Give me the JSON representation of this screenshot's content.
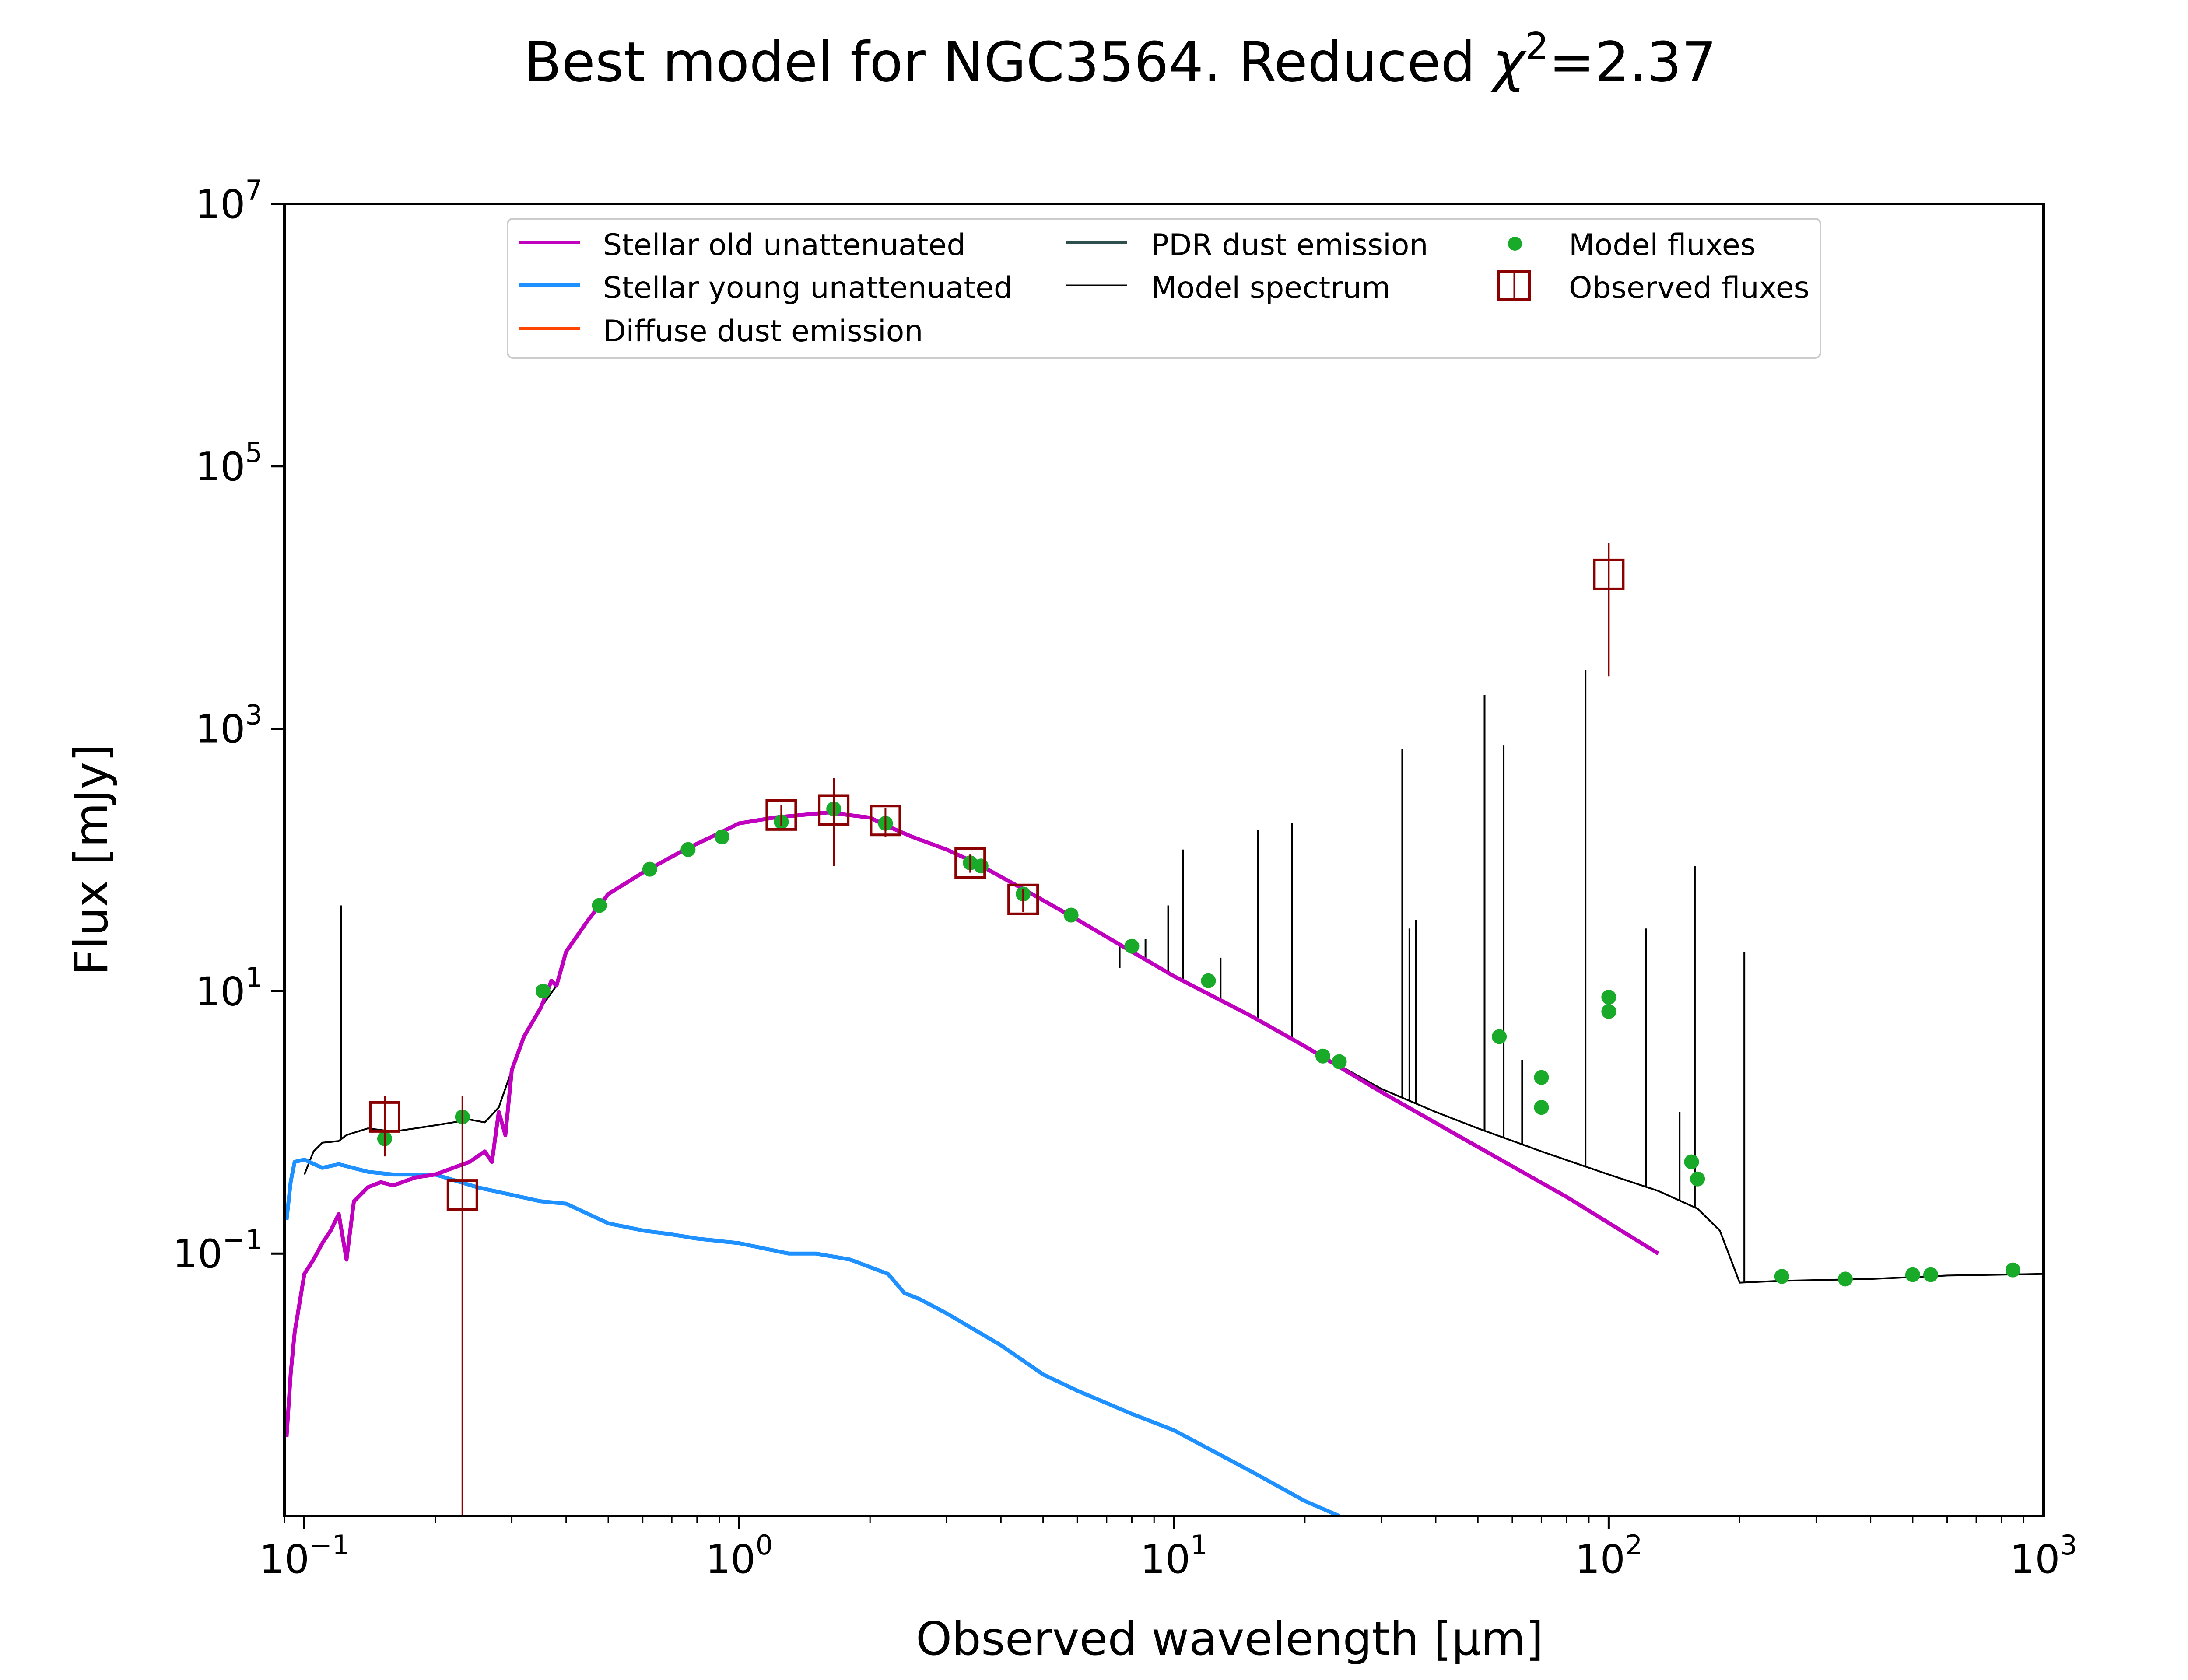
{
  "chart_data": {
    "type": "line",
    "title": "Best model for NGC3564. Reduced χ²=2.37",
    "title_parts": {
      "prefix": "Best model for NGC3564. Reduced ",
      "symbol": "χ",
      "superscript": "2",
      "suffix": "=2.37"
    },
    "xlabel": "Observed wavelength [μm]",
    "ylabel": "Flux [mJy]",
    "x_scale": "log",
    "y_scale": "log",
    "xlim": [
      0.09,
      1000
    ],
    "ylim": [
      0.001,
      10000000
    ],
    "grid": false,
    "legend_position": "upper center",
    "x_ticks": [
      {
        "base": "10",
        "exp": "−1",
        "value": 0.1
      },
      {
        "base": "10",
        "exp": "0",
        "value": 1
      },
      {
        "base": "10",
        "exp": "1",
        "value": 10
      },
      {
        "base": "10",
        "exp": "2",
        "value": 100
      },
      {
        "base": "10",
        "exp": "3",
        "value": 1000
      }
    ],
    "y_ticks": [
      {
        "base": "10",
        "exp": "−1",
        "value": 0.1
      },
      {
        "base": "10",
        "exp": "1",
        "value": 10
      },
      {
        "base": "10",
        "exp": "3",
        "value": 1000
      },
      {
        "base": "10",
        "exp": "5",
        "value": 100000
      },
      {
        "base": "10",
        "exp": "7",
        "value": 10000000
      }
    ],
    "series": [
      {
        "name": "Stellar old unattenuated",
        "color": "#bf00bf",
        "style": "line",
        "points": [
          [
            0.091,
            0.004
          ],
          [
            0.093,
            0.012
          ],
          [
            0.095,
            0.025
          ],
          [
            0.1,
            0.07
          ],
          [
            0.105,
            0.09
          ],
          [
            0.11,
            0.12
          ],
          [
            0.115,
            0.15
          ],
          [
            0.12,
            0.2
          ],
          [
            0.125,
            0.09
          ],
          [
            0.13,
            0.25
          ],
          [
            0.14,
            0.32
          ],
          [
            0.15,
            0.35
          ],
          [
            0.16,
            0.33
          ],
          [
            0.18,
            0.38
          ],
          [
            0.2,
            0.4
          ],
          [
            0.22,
            0.45
          ],
          [
            0.24,
            0.5
          ],
          [
            0.26,
            0.6
          ],
          [
            0.27,
            0.5
          ],
          [
            0.28,
            1.2
          ],
          [
            0.29,
            0.8
          ],
          [
            0.3,
            2.5
          ],
          [
            0.32,
            4.5
          ],
          [
            0.35,
            7.5
          ],
          [
            0.37,
            12
          ],
          [
            0.38,
            11
          ],
          [
            0.4,
            20
          ],
          [
            0.45,
            35
          ],
          [
            0.5,
            55
          ],
          [
            0.6,
            80
          ],
          [
            0.75,
            120
          ],
          [
            0.9,
            160
          ],
          [
            1.0,
            190
          ],
          [
            1.2,
            210
          ],
          [
            1.6,
            230
          ],
          [
            2.0,
            210
          ],
          [
            2.2,
            180
          ],
          [
            2.5,
            150
          ],
          [
            3.0,
            120
          ],
          [
            3.5,
            95
          ],
          [
            4.5,
            60
          ],
          [
            6,
            35
          ],
          [
            8,
            20
          ],
          [
            10,
            13
          ],
          [
            15,
            6.5
          ],
          [
            20,
            3.8
          ],
          [
            30,
            1.7
          ],
          [
            50,
            0.65
          ],
          [
            80,
            0.27
          ],
          [
            130,
            0.1
          ]
        ]
      },
      {
        "name": "Stellar young unattenuated",
        "color": "#1e90ff",
        "style": "line",
        "points": [
          [
            0.091,
            0.18
          ],
          [
            0.093,
            0.35
          ],
          [
            0.095,
            0.5
          ],
          [
            0.1,
            0.52
          ],
          [
            0.11,
            0.45
          ],
          [
            0.12,
            0.48
          ],
          [
            0.14,
            0.42
          ],
          [
            0.16,
            0.4
          ],
          [
            0.2,
            0.4
          ],
          [
            0.25,
            0.32
          ],
          [
            0.3,
            0.28
          ],
          [
            0.35,
            0.25
          ],
          [
            0.4,
            0.24
          ],
          [
            0.45,
            0.2
          ],
          [
            0.5,
            0.17
          ],
          [
            0.6,
            0.15
          ],
          [
            0.7,
            0.14
          ],
          [
            0.8,
            0.13
          ],
          [
            1.0,
            0.12
          ],
          [
            1.3,
            0.1
          ],
          [
            1.5,
            0.1
          ],
          [
            1.8,
            0.09
          ],
          [
            2.2,
            0.07
          ],
          [
            2.4,
            0.05
          ],
          [
            2.6,
            0.045
          ],
          [
            3.0,
            0.035
          ],
          [
            4.0,
            0.02
          ],
          [
            5.0,
            0.012
          ],
          [
            6,
            0.009
          ],
          [
            8,
            0.006
          ],
          [
            10,
            0.0045
          ],
          [
            15,
            0.0022
          ],
          [
            20,
            0.0013
          ],
          [
            24,
            0.001
          ]
        ]
      },
      {
        "name": "Diffuse dust emission",
        "color": "#ff4500",
        "style": "line",
        "points": []
      },
      {
        "name": "PDR dust emission",
        "color": "#2f4f4f",
        "style": "line",
        "points": []
      },
      {
        "name": "Model spectrum",
        "color": "#000000",
        "style": "thin-line",
        "points": [
          [
            0.1,
            0.4
          ],
          [
            0.105,
            0.6
          ],
          [
            0.11,
            0.7
          ],
          [
            0.12,
            0.72
          ],
          [
            0.125,
            0.8
          ],
          [
            0.14,
            0.9
          ],
          [
            0.16,
            0.85
          ],
          [
            0.18,
            0.9
          ],
          [
            0.2,
            0.95
          ],
          [
            0.22,
            1.0
          ],
          [
            0.24,
            1.05
          ],
          [
            0.26,
            1.0
          ],
          [
            0.28,
            1.3
          ],
          [
            0.3,
            2.5
          ],
          [
            0.32,
            4.5
          ],
          [
            0.35,
            7.5
          ],
          [
            0.38,
            11
          ],
          [
            0.4,
            20
          ],
          [
            0.45,
            35
          ],
          [
            0.5,
            55
          ],
          [
            0.6,
            80
          ],
          [
            0.75,
            120
          ],
          [
            0.9,
            160
          ],
          [
            1.0,
            190
          ],
          [
            1.2,
            210
          ],
          [
            1.6,
            230
          ],
          [
            2.0,
            210
          ],
          [
            2.2,
            180
          ],
          [
            2.5,
            150
          ],
          [
            3.0,
            120
          ],
          [
            3.5,
            95
          ],
          [
            4.5,
            60
          ],
          [
            6,
            35
          ],
          [
            8,
            20
          ],
          [
            10,
            13
          ],
          [
            15,
            6.5
          ],
          [
            20,
            3.8
          ],
          [
            30,
            1.8
          ],
          [
            40,
            1.2
          ],
          [
            50,
            0.9
          ],
          [
            70,
            0.6
          ],
          [
            100,
            0.4
          ],
          [
            130,
            0.3
          ],
          [
            160,
            0.22
          ],
          [
            180,
            0.15
          ],
          [
            200,
            0.06
          ],
          [
            250,
            0.062
          ],
          [
            400,
            0.064
          ],
          [
            600,
            0.068
          ],
          [
            1000,
            0.07
          ]
        ],
        "emission_lines": [
          [
            0.1216,
            45
          ],
          [
            7.5,
            15
          ],
          [
            8.6,
            25
          ],
          [
            9.7,
            45
          ],
          [
            10.5,
            120
          ],
          [
            12.8,
            18
          ],
          [
            15.6,
            170
          ],
          [
            18.7,
            190
          ],
          [
            33.5,
            700
          ],
          [
            34.8,
            30
          ],
          [
            36.0,
            35
          ],
          [
            51.8,
            1800
          ],
          [
            57.3,
            750
          ],
          [
            63.2,
            3
          ],
          [
            88.4,
            2800
          ],
          [
            121.9,
            30
          ],
          [
            145.5,
            1.2
          ],
          [
            157.7,
            90
          ],
          [
            205,
            20
          ]
        ]
      },
      {
        "name": "Model fluxes",
        "color": "#1aaa2a",
        "style": "points",
        "points": [
          [
            0.153,
            0.75
          ],
          [
            0.231,
            1.1
          ],
          [
            0.354,
            10
          ],
          [
            0.477,
            45
          ],
          [
            0.623,
            85
          ],
          [
            0.763,
            120
          ],
          [
            0.913,
            150
          ],
          [
            1.25,
            195
          ],
          [
            1.65,
            245
          ],
          [
            2.17,
            190
          ],
          [
            3.4,
            95
          ],
          [
            3.6,
            90
          ],
          [
            4.5,
            55
          ],
          [
            5.8,
            38
          ],
          [
            8.0,
            22
          ],
          [
            12,
            12
          ],
          [
            22,
            3.2
          ],
          [
            24,
            2.9
          ],
          [
            56,
            4.5
          ],
          [
            70,
            2.2
          ],
          [
            70,
            1.3
          ],
          [
            100,
            7
          ],
          [
            100,
            9
          ],
          [
            155,
            0.5
          ],
          [
            160,
            0.37
          ],
          [
            250,
            0.067
          ],
          [
            350,
            0.064
          ],
          [
            500,
            0.069
          ],
          [
            550,
            0.069
          ],
          [
            850,
            0.075
          ]
        ]
      },
      {
        "name": "Observed fluxes",
        "color": "#8b0000",
        "style": "squares-with-errorbars",
        "points": [
          [
            0.153,
            1.1
          ],
          [
            0.231,
            0.28
          ],
          [
            1.25,
            220
          ],
          [
            1.65,
            240
          ],
          [
            2.17,
            200
          ],
          [
            3.4,
            95
          ],
          [
            4.5,
            50
          ],
          [
            100,
            15000
          ]
        ],
        "errors_low": [
          [
            0.153,
            0.55
          ],
          [
            0.231,
            0.001
          ],
          [
            1.25,
            180
          ],
          [
            1.65,
            90
          ],
          [
            2.17,
            150
          ],
          [
            3.4,
            80
          ],
          [
            4.5,
            40
          ],
          [
            100,
            2500
          ]
        ],
        "errors_high": [
          [
            0.153,
            1.6
          ],
          [
            0.231,
            1.6
          ],
          [
            1.25,
            260
          ],
          [
            1.65,
            420
          ],
          [
            2.17,
            250
          ],
          [
            3.4,
            110
          ],
          [
            4.5,
            60
          ],
          [
            100,
            26000
          ]
        ]
      }
    ],
    "legend_labels": {
      "old": "Stellar old unattenuated",
      "young": "Stellar young unattenuated",
      "diffuse": "Diffuse dust emission",
      "pdr": "PDR dust emission",
      "spectrum": "Model spectrum",
      "model_fluxes": "Model fluxes",
      "observed_fluxes": "Observed fluxes"
    }
  }
}
